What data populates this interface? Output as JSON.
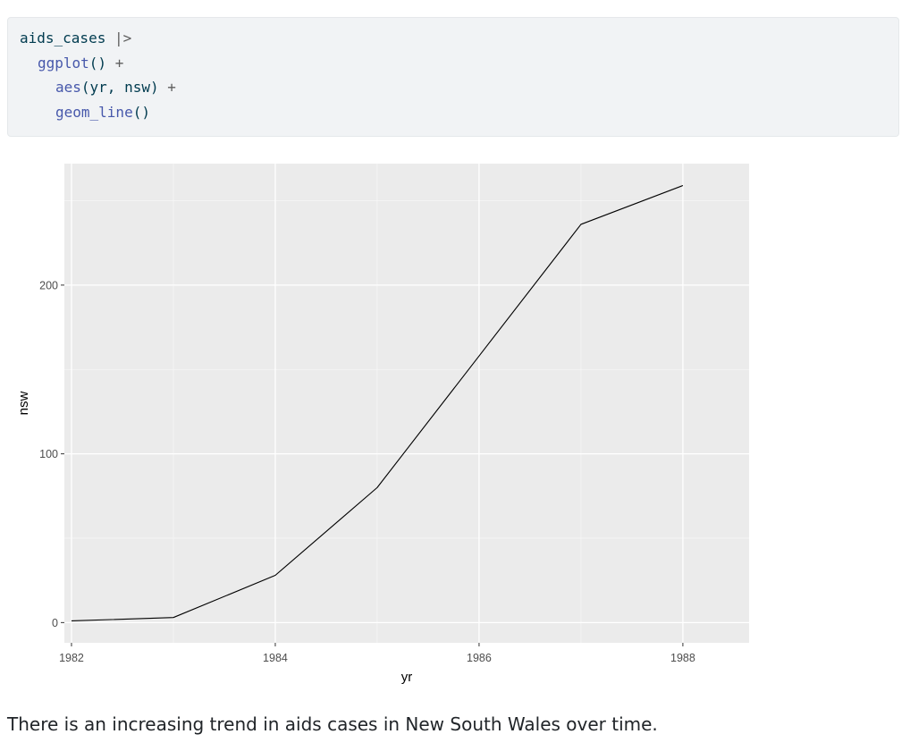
{
  "code": {
    "lines": [
      {
        "indent": 0,
        "tokens": [
          {
            "t": "aids_cases",
            "c": "obj"
          },
          {
            "t": " ",
            "c": "obj"
          },
          {
            "t": "|>",
            "c": "pipe"
          }
        ]
      },
      {
        "indent": 1,
        "tokens": [
          {
            "t": "ggplot",
            "c": "fn"
          },
          {
            "t": "()",
            "c": "paren"
          },
          {
            "t": " +",
            "c": "op"
          }
        ]
      },
      {
        "indent": 2,
        "tokens": [
          {
            "t": "aes",
            "c": "fn"
          },
          {
            "t": "(yr, nsw)",
            "c": "paren"
          },
          {
            "t": " +",
            "c": "op"
          }
        ]
      },
      {
        "indent": 2,
        "tokens": [
          {
            "t": "geom_line",
            "c": "fn"
          },
          {
            "t": "()",
            "c": "paren"
          }
        ]
      }
    ]
  },
  "chart_data": {
    "type": "line",
    "xlabel": "yr",
    "ylabel": "nsw",
    "x": [
      1982,
      1983,
      1984,
      1985,
      1986,
      1987,
      1988
    ],
    "y": [
      1,
      3,
      28,
      80,
      158,
      236,
      259
    ],
    "xlim": [
      1981.93,
      1988.65
    ],
    "ylim": [
      -12,
      272
    ],
    "x_ticks": [
      1982,
      1984,
      1986,
      1988
    ],
    "y_ticks": [
      0,
      100,
      200
    ],
    "grid": true,
    "line_color": "#000000",
    "panel_color": "#ebebeb"
  },
  "caption": "There is an increasing trend in aids cases in New South Wales over time."
}
